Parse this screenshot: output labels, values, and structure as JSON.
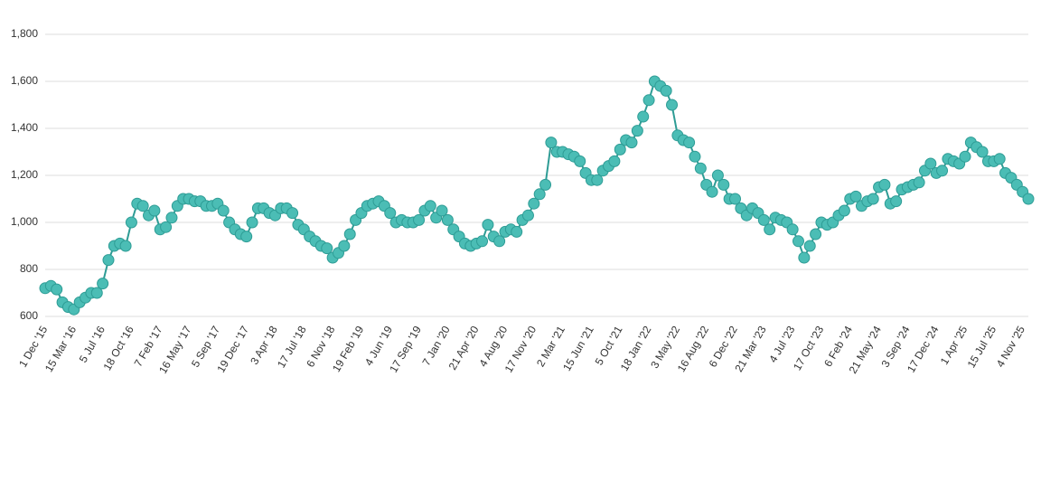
{
  "chart_data": {
    "type": "line",
    "categories": [
      "1 Dec '15",
      null,
      null,
      null,
      null,
      "15 Mar '16",
      null,
      null,
      null,
      null,
      "5 Jul '16",
      null,
      null,
      null,
      null,
      "18 Oct '16",
      null,
      null,
      null,
      null,
      "7 Feb '17",
      null,
      null,
      null,
      null,
      "16 May '17",
      null,
      null,
      null,
      null,
      "5 Sep '17",
      null,
      null,
      null,
      null,
      "19 Dec '17",
      null,
      null,
      null,
      null,
      "3 Apr '18",
      null,
      null,
      null,
      null,
      "17 Jul '18",
      null,
      null,
      null,
      null,
      "6 Nov '18",
      null,
      null,
      null,
      null,
      "19 Feb '19",
      null,
      null,
      null,
      null,
      "4 Jun '19",
      null,
      null,
      null,
      null,
      "17 Sep '19",
      null,
      null,
      null,
      null,
      "7 Jan '20",
      null,
      null,
      null,
      null,
      "21 Apr '20",
      null,
      null,
      null,
      null,
      "4 Aug '20",
      null,
      null,
      null,
      null,
      "17 Nov '20",
      null,
      null,
      null,
      null,
      "2 Mar '21",
      null,
      null,
      null,
      null,
      "15 Jun '21",
      null,
      null,
      null,
      null,
      "5 Oct '21",
      null,
      null,
      null,
      null,
      "18 Jan '22",
      null,
      null,
      null,
      null,
      "3 May '22",
      null,
      null,
      null,
      null,
      "16 Aug '22",
      null,
      null,
      null,
      null,
      "6 Dec '22",
      null,
      null,
      null,
      null,
      "21 Mar '23",
      null,
      null,
      null,
      null,
      "4 Jul '23",
      null,
      null,
      null,
      null,
      "17 Oct '23",
      null,
      null,
      null,
      null,
      "6 Feb '24",
      null,
      null,
      null,
      null,
      "21 May '24",
      null,
      null,
      null,
      null,
      "3 Sep '24",
      null,
      null,
      null,
      null,
      "17 Dec '24",
      null,
      null,
      null,
      null,
      "1 Apr '25",
      null,
      null,
      null,
      null,
      "15 Jul '25",
      null,
      null,
      null,
      null,
      "4 Nov '25",
      null
    ],
    "values": [
      720,
      730,
      715,
      660,
      640,
      630,
      660,
      680,
      700,
      700,
      740,
      840,
      900,
      910,
      900,
      1000,
      1080,
      1070,
      1030,
      1050,
      970,
      980,
      1020,
      1070,
      1100,
      1100,
      1090,
      1090,
      1070,
      1070,
      1080,
      1050,
      1000,
      970,
      950,
      940,
      1000,
      1060,
      1060,
      1040,
      1030,
      1060,
      1060,
      1040,
      990,
      970,
      940,
      920,
      900,
      890,
      850,
      870,
      900,
      950,
      1010,
      1040,
      1070,
      1080,
      1090,
      1070,
      1040,
      1000,
      1010,
      1000,
      1000,
      1010,
      1050,
      1070,
      1020,
      1050,
      1010,
      970,
      940,
      910,
      900,
      910,
      920,
      990,
      940,
      920,
      960,
      970,
      960,
      1010,
      1030,
      1080,
      1120,
      1160,
      1340,
      1300,
      1300,
      1290,
      1280,
      1260,
      1210,
      1180,
      1180,
      1220,
      1240,
      1260,
      1310,
      1350,
      1340,
      1390,
      1450,
      1520,
      1600,
      1580,
      1560,
      1500,
      1370,
      1350,
      1340,
      1280,
      1230,
      1160,
      1130,
      1200,
      1160,
      1100,
      1100,
      1060,
      1030,
      1060,
      1040,
      1010,
      970,
      1020,
      1010,
      1000,
      970,
      920,
      850,
      900,
      950,
      1000,
      990,
      1000,
      1030,
      1050,
      1100,
      1110,
      1070,
      1090,
      1100,
      1150,
      1160,
      1080,
      1090,
      1140,
      1150,
      1160,
      1170,
      1220,
      1250,
      1210,
      1220,
      1270,
      1260,
      1250,
      1280,
      1340,
      1320,
      1300,
      1260,
      1260,
      1270,
      1210,
      1190,
      1160,
      1130,
      1100
    ],
    "color": "#4bbdb5",
    "ylim": [
      600,
      1800
    ],
    "yticks": [
      600,
      800,
      {
        "value": 1000,
        "label": "1,000"
      },
      {
        "value": 1200,
        "label": "1,200"
      },
      {
        "value": 1400,
        "label": "1,400"
      },
      {
        "value": 1600,
        "label": "1,600"
      },
      {
        "value": 1800,
        "label": "1,800"
      }
    ],
    "grid": true
  }
}
